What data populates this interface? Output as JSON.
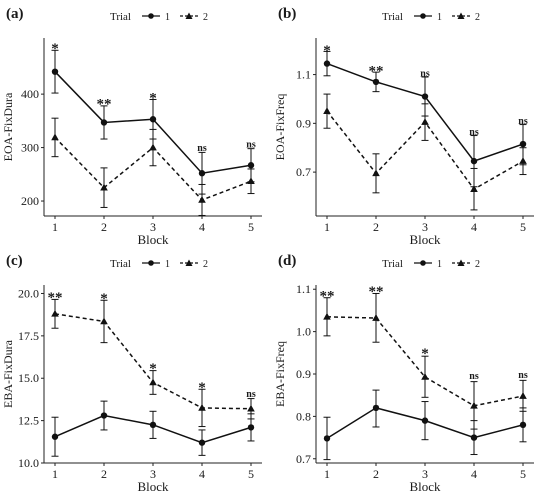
{
  "panels": [
    {
      "tag": "(a)",
      "legend_title": "Trial",
      "chart_data": {
        "type": "line",
        "xlabel": "Block",
        "ylabel": "EOA-FixDura",
        "categories": [
          1,
          2,
          3,
          4,
          5
        ],
        "ylim": [
          172,
          505
        ],
        "yticks": [
          200,
          300,
          400
        ],
        "series": [
          {
            "name": "1",
            "marker": "circle",
            "line": "solid",
            "values": [
              442,
              347,
              353,
              252,
              267
            ],
            "err": [
              [
                402,
                482
              ],
              [
                316,
                378
              ],
              [
                316,
                390
              ],
              [
                213,
                291
              ],
              [
                236,
                298
              ]
            ]
          },
          {
            "name": "2",
            "marker": "triangle",
            "line": "dashed",
            "values": [
              319,
              225,
              300,
              202,
              237
            ],
            "err": [
              [
                283,
                355
              ],
              [
                188,
                262
              ],
              [
                266,
                334
              ],
              [
                173,
                231
              ],
              [
                214,
                260
              ]
            ]
          }
        ],
        "annotations": [
          {
            "x": 1,
            "y": 488,
            "text": "*"
          },
          {
            "x": 2,
            "y": 384,
            "text": "**"
          },
          {
            "x": 3,
            "y": 396,
            "text": "*"
          },
          {
            "x": 4,
            "y": 297,
            "text": "ns"
          },
          {
            "x": 5,
            "y": 304,
            "text": "ns"
          }
        ]
      }
    },
    {
      "tag": "(b)",
      "legend_title": "Trial",
      "chart_data": {
        "type": "line",
        "xlabel": "Block",
        "ylabel": "EOA-FixFreq",
        "categories": [
          1,
          2,
          3,
          4,
          5
        ],
        "ylim": [
          0.52,
          1.25
        ],
        "yticks": [
          0.7,
          0.9,
          1.1
        ],
        "series": [
          {
            "name": "1",
            "marker": "circle",
            "line": "solid",
            "values": [
              1.145,
              1.07,
              1.01,
              0.745,
              0.815
            ],
            "err": [
              [
                1.095,
                1.195
              ],
              [
                1.03,
                1.11
              ],
              [
                0.93,
                1.09
              ],
              [
                0.64,
                0.85
              ],
              [
                0.73,
                0.895
              ]
            ]
          },
          {
            "name": "2",
            "marker": "triangle",
            "line": "dashed",
            "values": [
              0.95,
              0.695,
              0.905,
              0.63,
              0.745
            ],
            "err": [
              [
                0.88,
                1.02
              ],
              [
                0.615,
                0.775
              ],
              [
                0.83,
                0.98
              ],
              [
                0.545,
                0.715
              ],
              [
                0.69,
                0.8
              ]
            ]
          }
        ],
        "annotations": [
          {
            "x": 1,
            "y": 1.205,
            "text": "*"
          },
          {
            "x": 2,
            "y": 1.12,
            "text": "**"
          },
          {
            "x": 3,
            "y": 1.1,
            "text": "ns"
          },
          {
            "x": 4,
            "y": 0.86,
            "text": "ns"
          },
          {
            "x": 5,
            "y": 0.905,
            "text": "ns"
          }
        ]
      }
    },
    {
      "tag": "(c)",
      "legend_title": "Trial",
      "chart_data": {
        "type": "line",
        "xlabel": "Block",
        "ylabel": "EBA-FixDura",
        "categories": [
          1,
          2,
          3,
          4,
          5
        ],
        "ylim": [
          10,
          20.5
        ],
        "yticks": [
          10.0,
          12.5,
          15.0,
          17.5,
          20.0
        ],
        "series": [
          {
            "name": "1",
            "marker": "circle",
            "line": "solid",
            "values": [
              11.55,
              12.8,
              12.25,
              11.2,
              12.1
            ],
            "err": [
              [
                10.4,
                12.7
              ],
              [
                11.95,
                13.65
              ],
              [
                11.45,
                13.05
              ],
              [
                10.45,
                11.95
              ],
              [
                11.3,
                12.9
              ]
            ]
          },
          {
            "name": "2",
            "marker": "triangle",
            "line": "dashed",
            "values": [
              18.8,
              18.35,
              14.75,
              13.25,
              13.2
            ],
            "err": [
              [
                17.95,
                19.65
              ],
              [
                17.1,
                19.6
              ],
              [
                14.05,
                15.45
              ],
              [
                12.15,
                14.35
              ],
              [
                12.6,
                13.8
              ]
            ]
          }
        ],
        "annotations": [
          {
            "x": 1,
            "y": 19.85,
            "text": "**"
          },
          {
            "x": 2,
            "y": 19.8,
            "text": "*"
          },
          {
            "x": 3,
            "y": 15.65,
            "text": "*"
          },
          {
            "x": 4,
            "y": 14.55,
            "text": "*"
          },
          {
            "x": 5,
            "y": 14.0,
            "text": "ns"
          }
        ]
      }
    },
    {
      "tag": "(d)",
      "legend_title": "Trial",
      "chart_data": {
        "type": "line",
        "xlabel": "Block",
        "ylabel": "EBA-FixFreq",
        "categories": [
          1,
          2,
          3,
          4,
          5
        ],
        "ylim": [
          0.69,
          1.11
        ],
        "yticks": [
          0.7,
          0.8,
          0.9,
          1.0,
          1.1
        ],
        "series": [
          {
            "name": "1",
            "marker": "circle",
            "line": "solid",
            "values": [
              0.748,
              0.82,
              0.79,
              0.75,
              0.78
            ],
            "err": [
              [
                0.698,
                0.798
              ],
              [
                0.775,
                0.862
              ],
              [
                0.745,
                0.835
              ],
              [
                0.71,
                0.79
              ],
              [
                0.74,
                0.82
              ]
            ]
          },
          {
            "name": "2",
            "marker": "triangle",
            "line": "dashed",
            "values": [
              1.035,
              1.032,
              0.893,
              0.825,
              0.848
            ],
            "err": [
              [
                0.99,
                1.08
              ],
              [
                0.975,
                1.09
              ],
              [
                0.845,
                0.942
              ],
              [
                0.77,
                0.882
              ],
              [
                0.812,
                0.885
              ]
            ]
          }
        ],
        "annotations": [
          {
            "x": 1,
            "y": 1.088,
            "text": "**"
          },
          {
            "x": 2,
            "y": 1.098,
            "text": "**"
          },
          {
            "x": 3,
            "y": 0.952,
            "text": "*"
          },
          {
            "x": 4,
            "y": 0.893,
            "text": "ns"
          },
          {
            "x": 5,
            "y": 0.895,
            "text": "ns"
          }
        ]
      }
    }
  ]
}
